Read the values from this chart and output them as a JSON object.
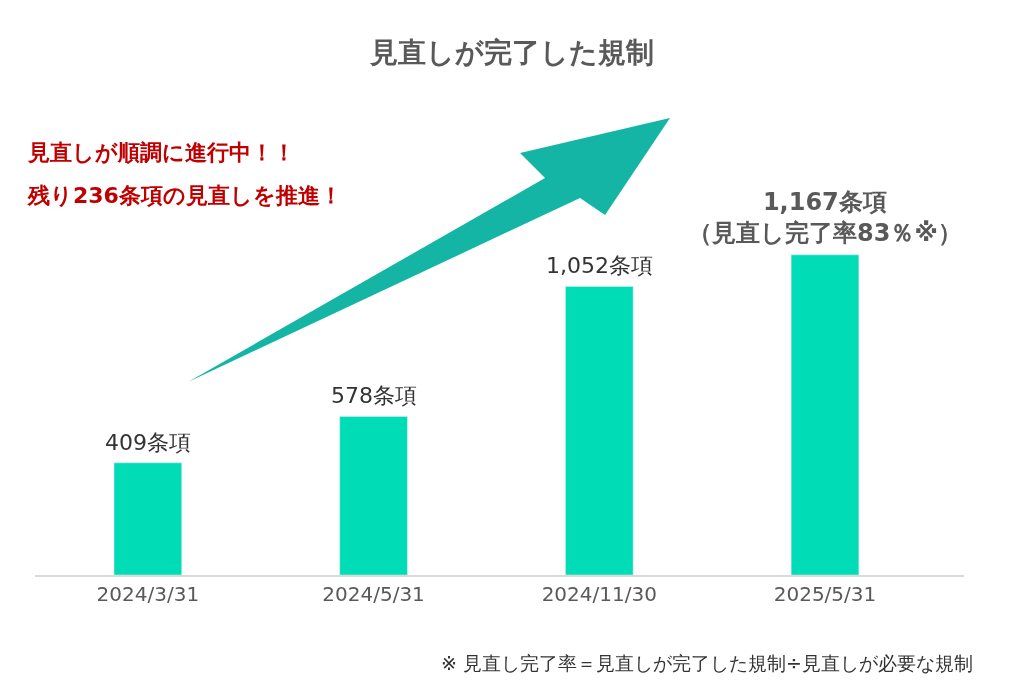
{
  "chart_data": {
    "type": "bar",
    "title": "見直しが完了した規制",
    "categories": [
      "2024/3/31",
      "2024/5/31",
      "2024/11/30",
      "2025/5/31"
    ],
    "values": [
      409,
      578,
      1052,
      1167
    ],
    "value_labels": [
      "409条項",
      "578条項",
      "1,052条項",
      "1,167条項（見直し完了率83％※）"
    ],
    "color": "#00dcb5",
    "annotations": [
      "見直しが順調に進行中！！",
      "残り236条項の見直しを推進！",
      "※ 見直し完了率＝見直しが完了した規制÷見直しが必要な規制"
    ],
    "legend": false
  }
}
